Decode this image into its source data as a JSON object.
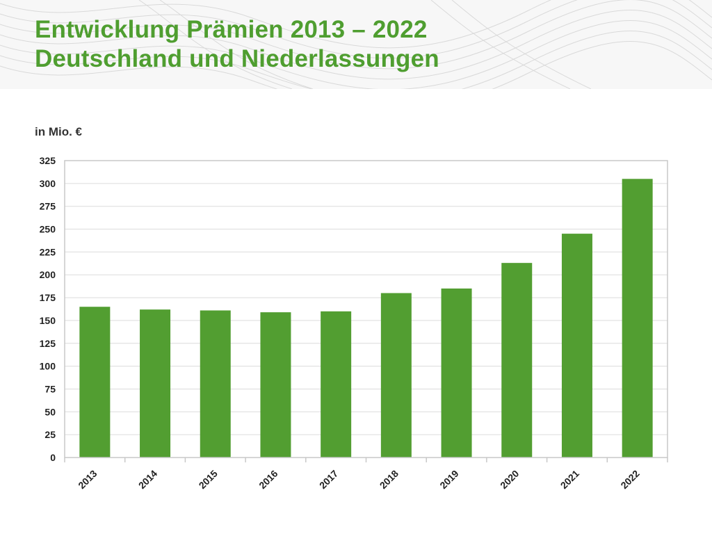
{
  "header": {
    "title_line1": "Entwicklung Prämien 2013 – 2022",
    "title_line2": "Deutschland und Niederlassungen"
  },
  "colors": {
    "title": "#4f9e30",
    "bar": "#529e31",
    "grid": "#dcdcdc",
    "axis_text": "#222222"
  },
  "chart_data": {
    "type": "bar",
    "title": "Entwicklung Prämien 2013 – 2022 Deutschland und Niederlassungen",
    "ylabel": "in Mio. €",
    "xlabel": "",
    "categories": [
      "2013",
      "2014",
      "2015",
      "2016",
      "2017",
      "2018",
      "2019",
      "2020",
      "2021",
      "2022"
    ],
    "values": [
      165,
      162,
      161,
      159,
      160,
      180,
      185,
      213,
      245,
      305
    ],
    "ylim": [
      0,
      325
    ],
    "yticks": [
      0,
      25,
      50,
      75,
      100,
      125,
      150,
      175,
      200,
      225,
      250,
      275,
      300,
      325
    ],
    "grid": true,
    "legend": "none"
  }
}
